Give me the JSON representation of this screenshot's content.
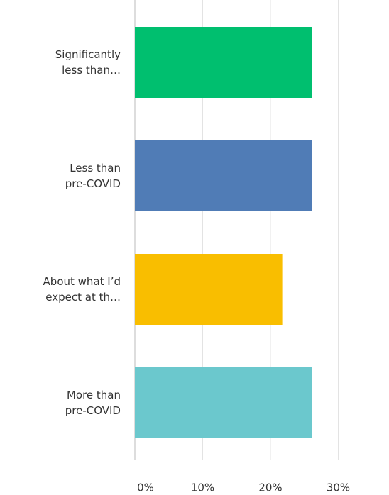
{
  "chart_data": {
    "type": "bar",
    "orientation": "horizontal",
    "categories": [
      "Significantly less than…",
      "Less than pre-COVID",
      "About what I’d expect at th…",
      "More than pre-COVID"
    ],
    "values": [
      26.09,
      26.09,
      21.74,
      26.09
    ],
    "colors": [
      "#00bf6f",
      "#507cb6",
      "#f9be00",
      "#6bc8cd"
    ],
    "xlim": [
      0,
      35
    ],
    "xticks": [
      {
        "value": 0,
        "label": "0%"
      },
      {
        "value": 10,
        "label": "10%"
      },
      {
        "value": 20,
        "label": "20%"
      },
      {
        "value": 30,
        "label": "30%"
      }
    ],
    "grid": true
  }
}
